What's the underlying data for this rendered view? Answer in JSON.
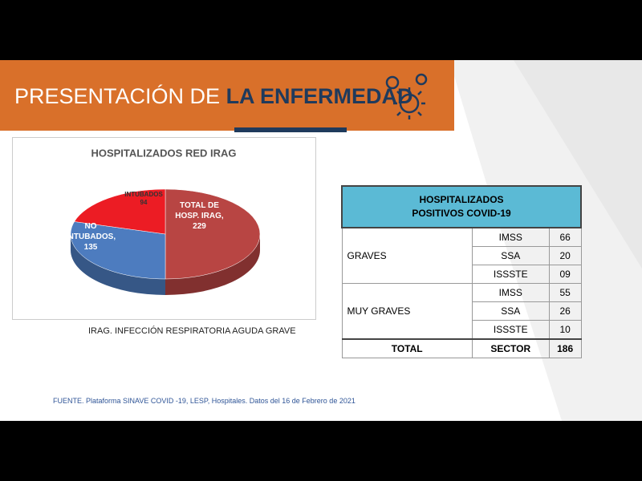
{
  "header": {
    "title_light": "PRESENTACIÓN DE",
    "title_bold": "LA ENFERMEDAD"
  },
  "chart_data": {
    "type": "pie",
    "title": "HOSPITALIZADOS RED IRAG",
    "categories": [
      "TOTAL DE HOSP. IRAG,",
      "NO INTUBADOS,",
      "INTUBADOS"
    ],
    "values": [
      229,
      135,
      94
    ],
    "colors": [
      "#b84543",
      "#4d7cbf",
      "#ec1c24"
    ]
  },
  "footnote": "IRAG. INFECCIÓN RESPIRATORIA AGUDA GRAVE",
  "table": {
    "header": [
      "HOSPITALIZADOS",
      "POSITIVOS COVID-19"
    ],
    "groups": [
      {
        "label": "GRAVES",
        "rows": [
          [
            "IMSS",
            "66"
          ],
          [
            "SSA",
            "20"
          ],
          [
            "ISSSTE",
            "09"
          ]
        ]
      },
      {
        "label": "MUY GRAVES",
        "rows": [
          [
            "IMSS",
            "55"
          ],
          [
            "SSA",
            "26"
          ],
          [
            "ISSSTE",
            "10"
          ]
        ]
      }
    ],
    "total": [
      "TOTAL",
      "SECTOR",
      "186"
    ]
  },
  "source": "FUENTE. Plataforma SINAVE COVID -19, LESP, Hospitales. Datos del 16 de Febrero de 2021"
}
